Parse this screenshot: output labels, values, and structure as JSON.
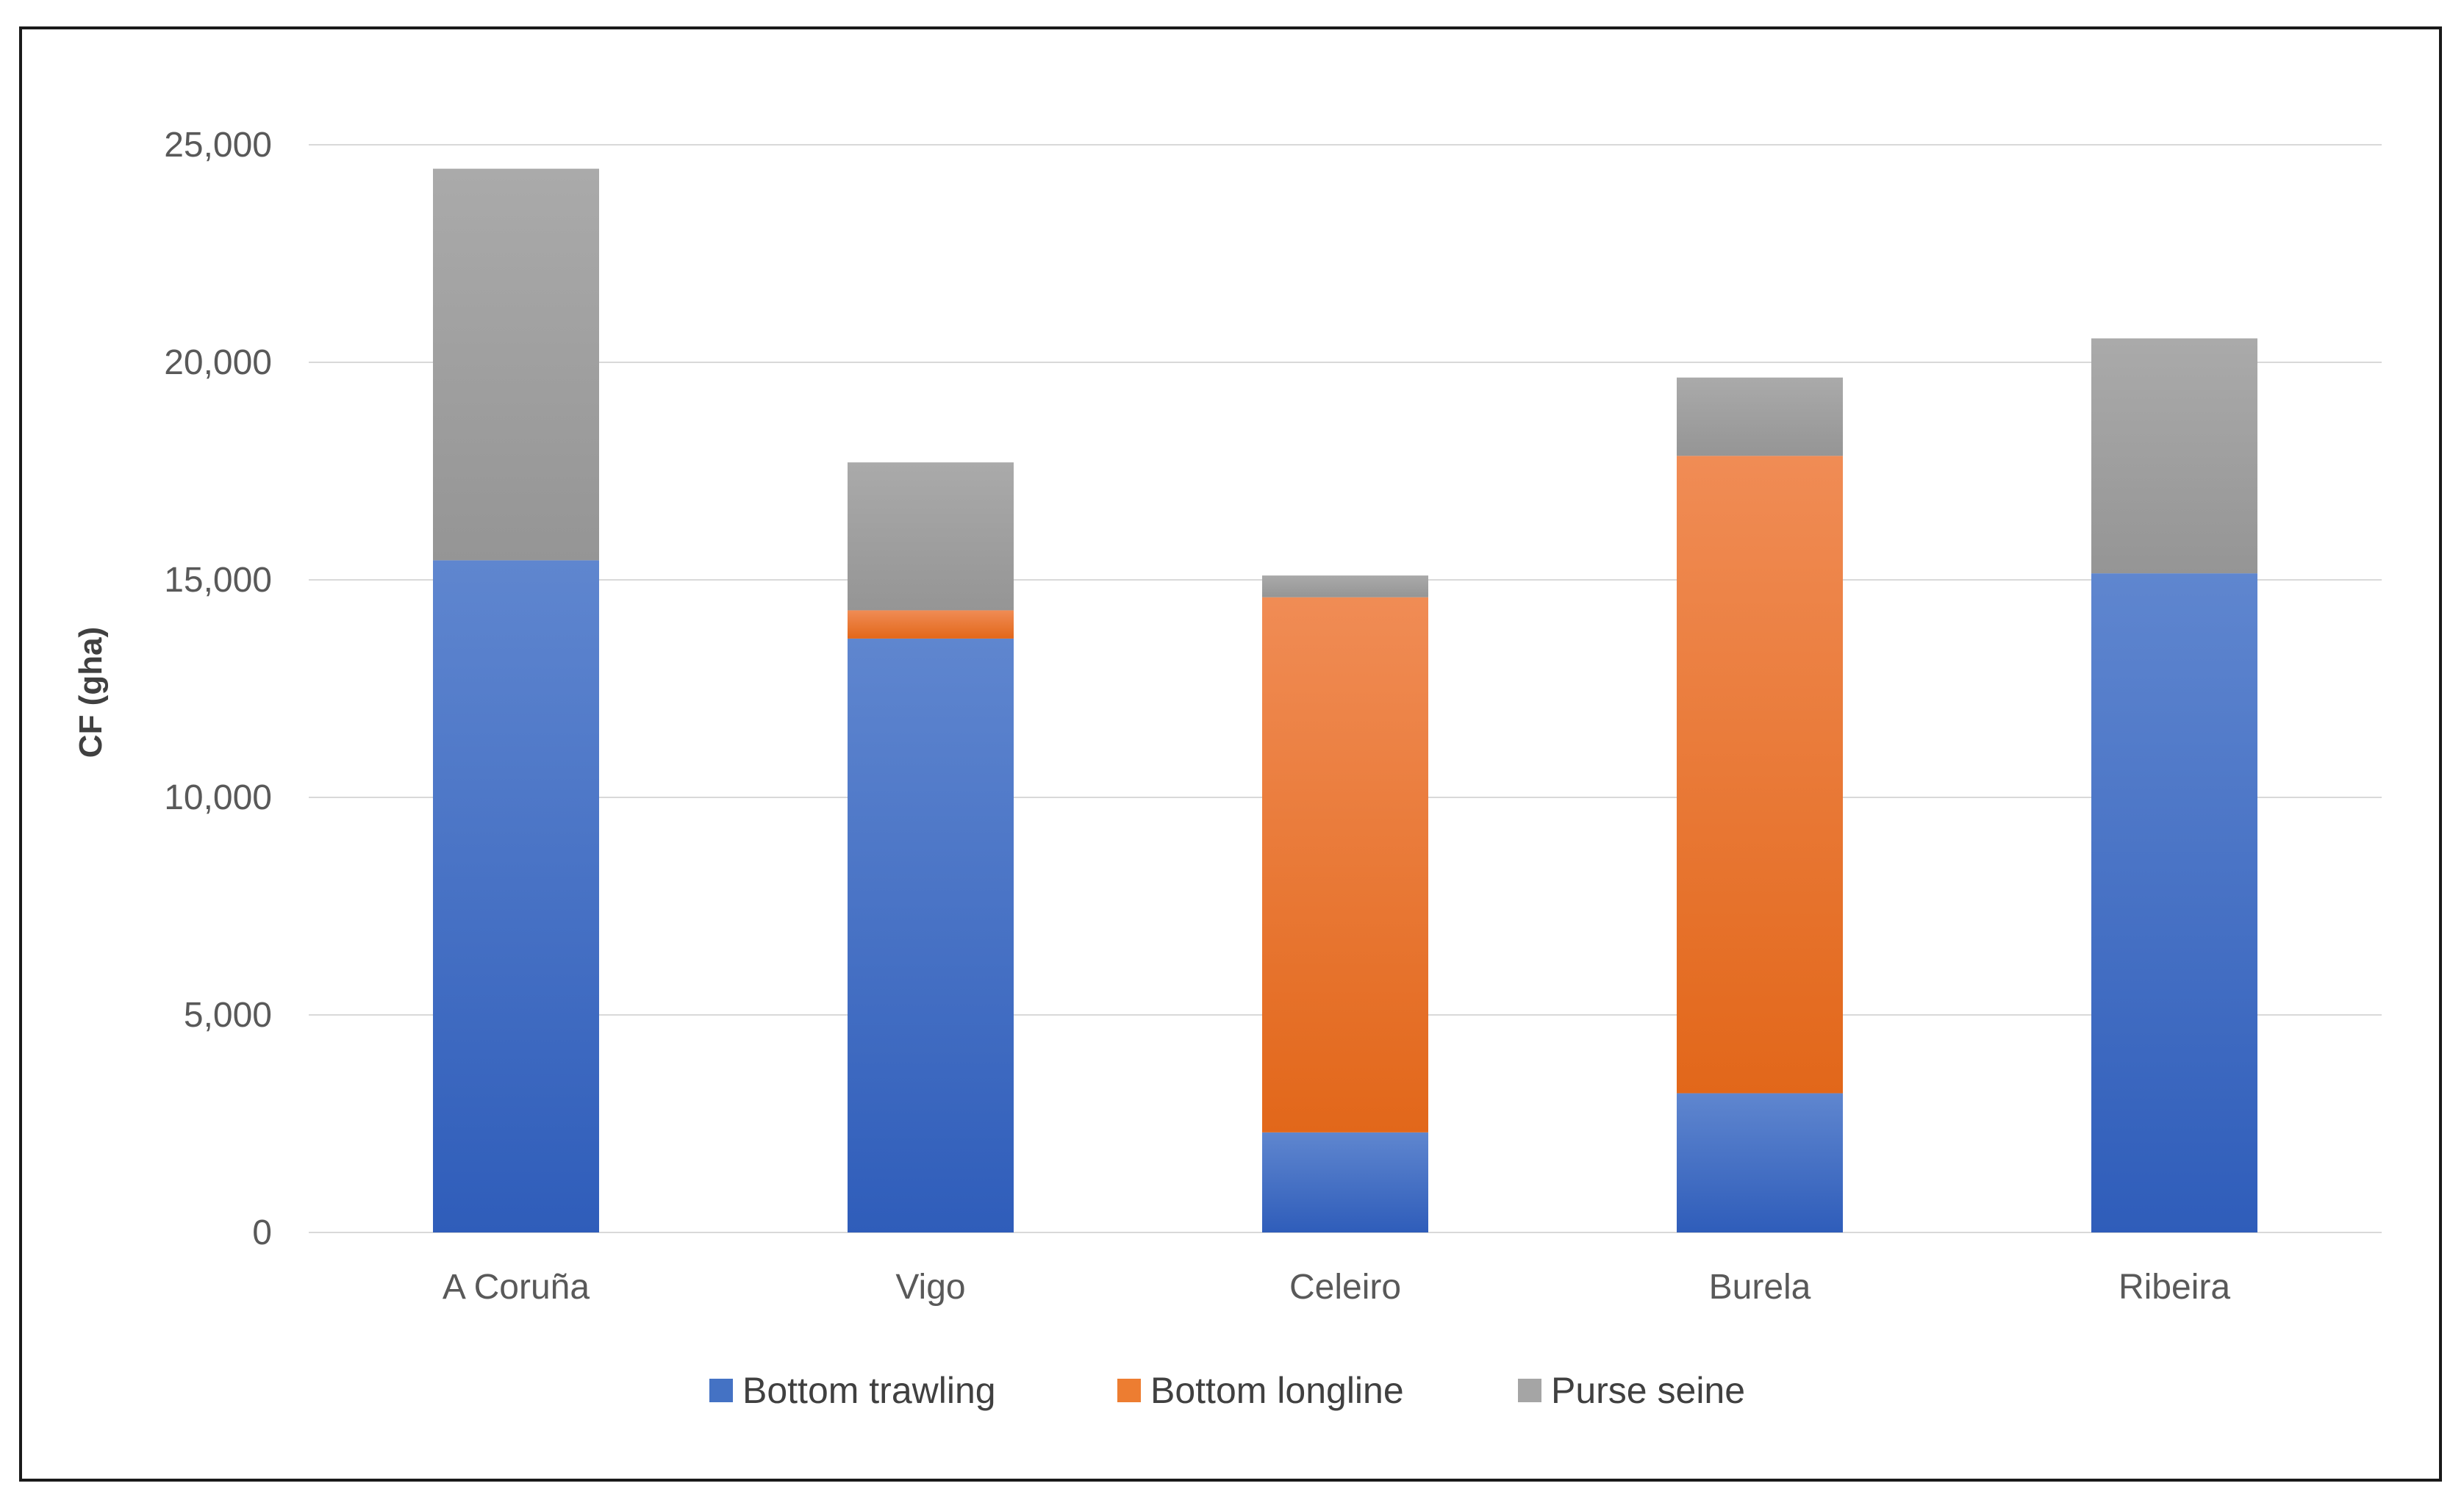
{
  "chart_data": {
    "type": "bar",
    "stacked": true,
    "categories": [
      "A Coruña",
      "Vigo",
      "Celeiro",
      "Burela",
      "Ribeira"
    ],
    "series": [
      {
        "name": "Bottom trawling",
        "color": "#4472C4",
        "values": [
          15450,
          13650,
          2300,
          3200,
          15150
        ]
      },
      {
        "name": "Bottom longline",
        "color": "#ED7D31",
        "values": [
          0,
          650,
          12300,
          14650,
          0
        ]
      },
      {
        "name": "Purse seine",
        "color": "#A5A5A5",
        "values": [
          9000,
          3400,
          500,
          1800,
          5400
        ]
      }
    ],
    "ylabel": "CF (gha)",
    "xlabel": "",
    "ylim": [
      0,
      25000
    ],
    "yticks": [
      "0",
      "5,000",
      "10,000",
      "15,000",
      "20,000",
      "25,000"
    ],
    "grid": true,
    "legend_position": "bottom"
  }
}
